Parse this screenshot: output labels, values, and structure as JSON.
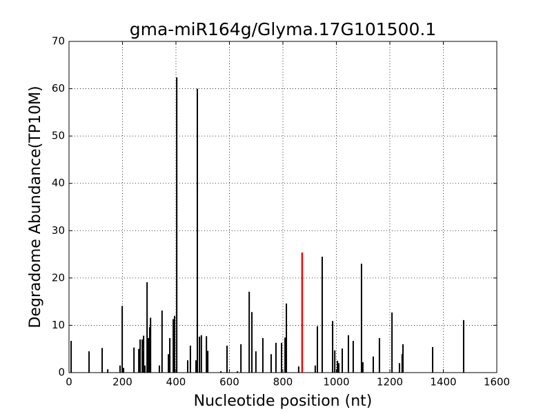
{
  "chart_data": {
    "type": "stem",
    "title": "gma-miR164g/Glyma.17G101500.1",
    "x_label": "Nucleotide position (nt)",
    "y_label": "Degradome Abundance(TP10M)",
    "color": "#000000",
    "x": [
      8,
      75,
      124,
      145,
      191,
      199,
      204,
      243,
      261,
      266,
      274,
      279,
      284,
      292,
      297,
      302,
      305,
      338,
      348,
      372,
      377,
      390,
      395,
      403,
      444,
      454,
      475,
      480,
      488,
      495,
      514,
      519,
      568,
      591,
      630,
      643,
      674,
      684,
      699,
      725,
      756,
      774,
      795,
      808,
      813,
      859,
      921,
      929,
      947,
      986,
      994,
      1004,
      1009,
      1022,
      1045,
      1063,
      1094,
      1099,
      1138,
      1161,
      1208,
      1236,
      1246,
      1249,
      1360,
      1476
    ],
    "values": [
      6.7,
      4.5,
      5.2,
      0.7,
      1.5,
      14.1,
      1,
      5.3,
      5,
      7,
      7,
      7.8,
      1.5,
      19.1,
      7.3,
      9.6,
      11.6,
      1.5,
      13.1,
      3.9,
      7.3,
      11.3,
      12,
      62.4,
      2.6,
      5.7,
      2.6,
      60,
      7.6,
      7.9,
      7.7,
      4.6,
      0.3,
      5.7,
      0.3,
      6,
      17.1,
      12.8,
      4.5,
      7.3,
      3.9,
      6.3,
      6.3,
      7.4,
      14.6,
      1.3,
      1.5,
      9.8,
      24.5,
      10.9,
      4.7,
      2.5,
      2,
      5.1,
      7.9,
      6.7,
      23,
      2.2,
      3.4,
      7.3,
      12.7,
      2,
      3.9,
      6,
      5.4,
      11.1
    ],
    "highlight": {
      "x": 872,
      "value": 25.4,
      "color": "#ff0000"
    },
    "xlim": [
      0,
      1600
    ],
    "xticks": [
      0,
      200,
      400,
      600,
      800,
      1000,
      1200,
      1400,
      1600
    ],
    "ylim": [
      0,
      70
    ],
    "yticks": [
      0,
      10,
      20,
      30,
      40,
      50,
      60,
      70
    ],
    "grid": true
  }
}
